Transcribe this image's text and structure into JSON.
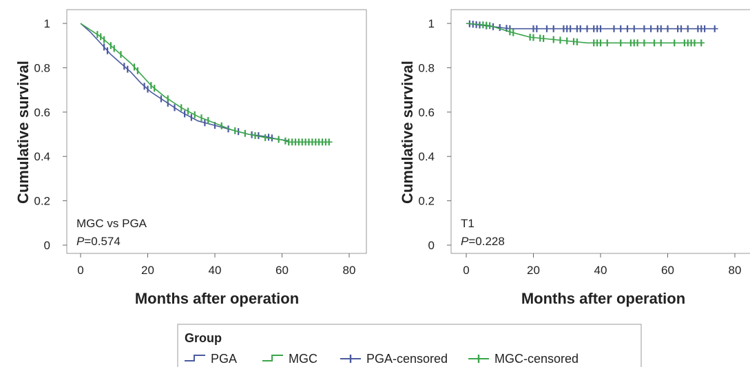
{
  "chart_data": [
    {
      "type": "line",
      "xlabel": "Months after operation",
      "ylabel": "Cumulative survival",
      "xlim": [
        0,
        80
      ],
      "ylim": [
        0,
        1
      ],
      "xticks": [
        "0",
        "20",
        "40",
        "60",
        "80"
      ],
      "yticks": [
        "0",
        "0.2",
        "0.4",
        "0.6",
        "0.8",
        "1"
      ],
      "annotation_line1": "MGC vs PGA",
      "annotation_p_label": "P",
      "annotation_p_value": "=0.574",
      "series": [
        {
          "name": "PGA",
          "color": "#4a5a9e",
          "x": [
            0,
            3,
            6,
            9,
            12,
            15,
            18,
            21,
            25,
            30,
            35,
            40,
            45,
            50,
            55,
            58,
            60,
            62
          ],
          "y": [
            1.0,
            0.96,
            0.91,
            0.86,
            0.82,
            0.78,
            0.73,
            0.69,
            0.65,
            0.6,
            0.56,
            0.54,
            0.52,
            0.5,
            0.49,
            0.48,
            0.475,
            0.47
          ],
          "censor_x": [
            7,
            8,
            13,
            14,
            19,
            20,
            24,
            26,
            28,
            31,
            33,
            37,
            40,
            44,
            47,
            51,
            53,
            56,
            57
          ]
        },
        {
          "name": "MGC",
          "color": "#3aa54a",
          "x": [
            0,
            3,
            6,
            9,
            12,
            15,
            18,
            21,
            25,
            30,
            35,
            40,
            45,
            50,
            55,
            60,
            62,
            75
          ],
          "y": [
            1.0,
            0.97,
            0.94,
            0.9,
            0.86,
            0.82,
            0.77,
            0.72,
            0.67,
            0.62,
            0.58,
            0.55,
            0.52,
            0.5,
            0.485,
            0.475,
            0.465,
            0.465
          ],
          "censor_x": [
            5,
            6,
            7,
            9,
            10,
            12,
            16,
            17,
            21,
            22,
            26,
            30,
            32,
            34,
            36,
            38,
            42,
            46,
            49,
            52,
            55,
            59,
            61,
            62,
            63,
            64,
            65,
            66,
            67,
            68,
            69,
            70,
            71,
            72,
            73,
            74
          ]
        }
      ]
    },
    {
      "type": "line",
      "xlabel": "Months after operation",
      "ylabel": "Cumulative survival",
      "xlim": [
        0,
        80
      ],
      "ylim": [
        0,
        1
      ],
      "xticks": [
        "0",
        "20",
        "40",
        "60",
        "80"
      ],
      "yticks": [
        "0",
        "0.2",
        "0.4",
        "0.6",
        "0.8",
        "1"
      ],
      "annotation_line1": "T1",
      "annotation_p_label": "P",
      "annotation_p_value": "=0.228",
      "series": [
        {
          "name": "PGA",
          "color": "#4a5a9e",
          "x": [
            0,
            13,
            75
          ],
          "y": [
            1.0,
            0.976,
            0.976
          ],
          "censor_x": [
            1,
            2,
            3,
            4,
            6,
            8,
            10,
            12,
            13,
            20,
            21,
            24,
            26,
            29,
            30,
            31,
            33,
            34,
            36,
            38,
            39,
            40,
            44,
            46,
            48,
            50,
            53,
            55,
            57,
            58,
            60,
            63,
            64,
            66,
            69,
            70,
            71,
            74
          ]
        },
        {
          "name": "MGC",
          "color": "#3aa54a",
          "x": [
            0,
            4,
            7,
            13,
            19,
            36,
            71
          ],
          "y": [
            1.0,
            0.995,
            0.99,
            0.962,
            0.938,
            0.912,
            0.912
          ],
          "censor_x": [
            5,
            6,
            7,
            13,
            14,
            19,
            20,
            22,
            23,
            26,
            28,
            30,
            32,
            33,
            38,
            39,
            40,
            42,
            46,
            49,
            50,
            51,
            53,
            56,
            58,
            62,
            65,
            66,
            67,
            68,
            70
          ]
        }
      ]
    }
  ],
  "legend": {
    "title": "Group",
    "items": [
      {
        "label": "PGA",
        "kind": "step",
        "color": "#4a5a9e"
      },
      {
        "label": "MGC",
        "kind": "step",
        "color": "#3aa54a"
      },
      {
        "label": "PGA-censored",
        "kind": "censor",
        "color": "#4a5a9e"
      },
      {
        "label": "MGC-censored",
        "kind": "censor",
        "color": "#3aa54a"
      }
    ]
  }
}
